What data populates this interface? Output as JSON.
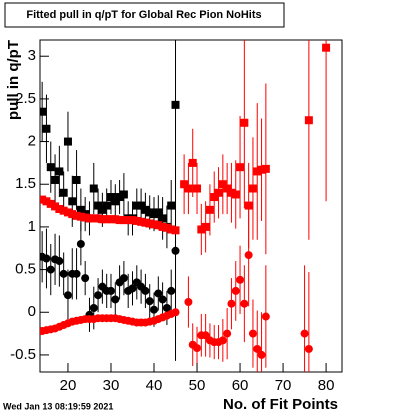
{
  "chart_data": {
    "type": "scatter",
    "title": "Fitted pull in q/pT for Global Rec Pion NoHits",
    "x_label": "No. of Fit Points",
    "y_label": "pull in q/pT",
    "timestamp": "Wed Jan 13 08:19:59 2021",
    "xlim": [
      13.5,
      83.7
    ],
    "ylim": [
      -0.7,
      3.19
    ],
    "xticks": [
      20,
      30,
      40,
      50,
      60,
      70,
      80
    ],
    "yticks": [
      -0.5,
      0,
      0.5,
      1,
      1.5,
      2,
      2.5,
      3
    ],
    "series": [
      {
        "color": "#000000",
        "marker": "square",
        "x": [
          14,
          15,
          16,
          17,
          18,
          19,
          20,
          21,
          22,
          23,
          24,
          25,
          26,
          27,
          28,
          29,
          30,
          31,
          32,
          33,
          34,
          35,
          36,
          37,
          38,
          39,
          40,
          41,
          42,
          43,
          44,
          45
        ],
        "values": [
          2.35,
          2.15,
          1.7,
          1.55,
          1.65,
          1.4,
          2.0,
          1.3,
          1.55,
          1.2,
          1.15,
          1.1,
          1.45,
          1.25,
          1.2,
          1.25,
          1.35,
          1.3,
          1.35,
          1.38,
          1.1,
          1.1,
          1.25,
          1.25,
          1.2,
          1.17,
          1.15,
          1.17,
          1.1,
          1.0,
          1.25,
          2.43
        ],
        "errors": [
          0.35,
          0.4,
          0.3,
          0.3,
          0.3,
          0.25,
          0.35,
          0.3,
          0.35,
          0.25,
          0.2,
          0.2,
          0.3,
          0.2,
          0.2,
          0.2,
          0.2,
          0.2,
          0.2,
          0.25,
          0.2,
          0.2,
          0.2,
          0.2,
          0.2,
          0.2,
          0.2,
          0.2,
          0.25,
          0.25,
          0.3,
          3.0
        ]
      },
      {
        "color": "#000000",
        "marker": "circle",
        "x": [
          14,
          15,
          16,
          17,
          18,
          19,
          20,
          21,
          22,
          23,
          24,
          25,
          26,
          27,
          28,
          29,
          30,
          31,
          32,
          33,
          34,
          35,
          36,
          37,
          38,
          39,
          40,
          41,
          42,
          43,
          44,
          45
        ],
        "values": [
          0.65,
          0.63,
          0.5,
          0.62,
          0.6,
          0.45,
          0.2,
          0.45,
          0.45,
          0.8,
          0.4,
          -0.03,
          0.05,
          0.2,
          0.3,
          0.25,
          0.25,
          0.15,
          0.35,
          0.4,
          0.25,
          0.28,
          0.35,
          0.3,
          0.25,
          0.13,
          0.03,
          0.22,
          0.15,
          0.05,
          0.25,
          0.72
        ],
        "errors": [
          0.3,
          0.35,
          0.3,
          0.3,
          0.3,
          0.25,
          0.3,
          0.3,
          0.3,
          0.25,
          0.2,
          0.2,
          0.25,
          0.2,
          0.2,
          0.2,
          0.2,
          0.2,
          0.2,
          0.2,
          0.2,
          0.2,
          0.2,
          0.2,
          0.2,
          0.2,
          0.2,
          0.2,
          0.2,
          0.2,
          0.25,
          1.0
        ]
      },
      {
        "color": "#ff0000",
        "marker": "square",
        "x": [
          14,
          15,
          16,
          17,
          18,
          19,
          20,
          21,
          22,
          23,
          24,
          25,
          26,
          27,
          28,
          29,
          30,
          31,
          32,
          33,
          34,
          35,
          36,
          37,
          38,
          39,
          40,
          41,
          42,
          43,
          44,
          45
        ],
        "values": [
          1.32,
          1.3,
          1.27,
          1.24,
          1.21,
          1.19,
          1.17,
          1.15,
          1.13,
          1.12,
          1.11,
          1.1,
          1.1,
          1.1,
          1.09,
          1.09,
          1.09,
          1.09,
          1.08,
          1.08,
          1.08,
          1.08,
          1.07,
          1.06,
          1.05,
          1.04,
          1.03,
          1.02,
          1.0,
          0.99,
          0.97,
          0.96
        ]
      },
      {
        "color": "#ff0000",
        "marker": "circle",
        "x": [
          14,
          15,
          16,
          17,
          18,
          19,
          20,
          21,
          22,
          23,
          24,
          25,
          26,
          27,
          28,
          29,
          30,
          31,
          32,
          33,
          34,
          35,
          36,
          37,
          38,
          39,
          40,
          41,
          42,
          43,
          44,
          45
        ],
        "values": [
          -0.22,
          -0.21,
          -0.2,
          -0.19,
          -0.17,
          -0.15,
          -0.13,
          -0.11,
          -0.1,
          -0.09,
          -0.08,
          -0.08,
          -0.08,
          -0.07,
          -0.07,
          -0.07,
          -0.07,
          -0.07,
          -0.08,
          -0.09,
          -0.1,
          -0.11,
          -0.12,
          -0.12,
          -0.12,
          -0.11,
          -0.1,
          -0.08,
          -0.06,
          -0.04,
          -0.02,
          0.0
        ]
      },
      {
        "color": "#ff0000",
        "marker": "square",
        "x": [
          47,
          48,
          49,
          50,
          51,
          52,
          53,
          54,
          55,
          56,
          57,
          58,
          59,
          60,
          61,
          62,
          63,
          64,
          65,
          66,
          76,
          80
        ],
        "values": [
          1.5,
          1.45,
          1.75,
          1.45,
          0.97,
          1.0,
          1.2,
          1.35,
          1.4,
          1.5,
          1.45,
          1.4,
          1.38,
          1.7,
          2.22,
          1.25,
          1.45,
          1.65,
          1.67,
          1.68,
          2.25,
          3.1
        ],
        "errors": [
          0.35,
          0.3,
          0.4,
          0.3,
          0.3,
          0.3,
          0.3,
          0.3,
          0.3,
          0.35,
          0.3,
          0.35,
          0.4,
          0.6,
          1.0,
          0.5,
          0.6,
          0.8,
          0.6,
          1.0,
          1.4,
          1.8
        ]
      },
      {
        "color": "#ff0000",
        "marker": "circle",
        "x": [
          48,
          49,
          50,
          51,
          52,
          53,
          54,
          55,
          56,
          57,
          58,
          59,
          60,
          61,
          62,
          63,
          64,
          65,
          66,
          75,
          76
        ],
        "values": [
          0.12,
          -0.38,
          -0.42,
          -0.27,
          -0.27,
          -0.33,
          -0.35,
          -0.35,
          -0.33,
          -0.25,
          0.1,
          0.25,
          0.38,
          0.1,
          0.67,
          -0.25,
          -0.43,
          -0.5,
          -0.05,
          -0.25,
          -0.43
        ],
        "errors": [
          0.3,
          0.25,
          0.25,
          0.25,
          0.25,
          0.2,
          0.2,
          0.2,
          0.25,
          0.3,
          0.3,
          0.35,
          0.4,
          0.45,
          0.6,
          0.4,
          0.45,
          0.5,
          0.6,
          0.8,
          0.9
        ]
      }
    ]
  }
}
